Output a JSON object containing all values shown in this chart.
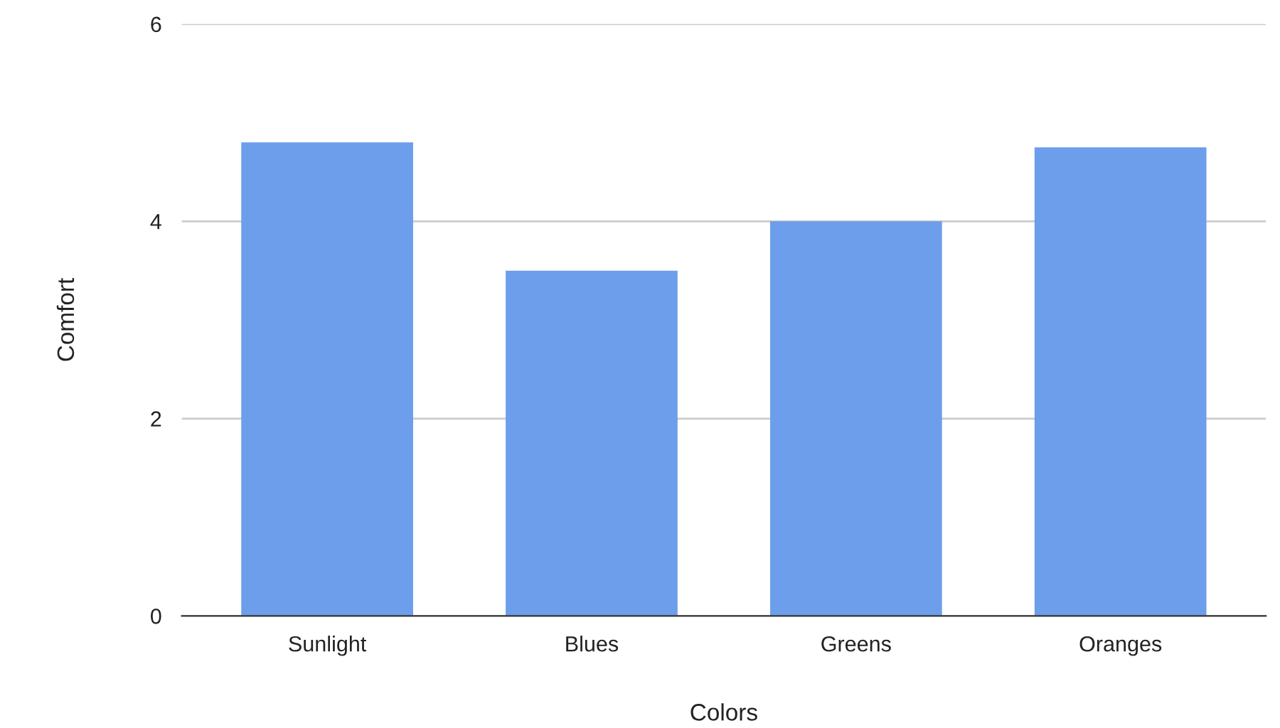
{
  "chart_data": {
    "type": "bar",
    "xlabel": "Colors",
    "ylabel": "Comfort",
    "categories": [
      "Sunlight",
      "Blues",
      "Greens",
      "Oranges"
    ],
    "values": [
      4.8,
      3.5,
      4.0,
      4.75
    ],
    "color": "#6d9eeb",
    "ylim": [
      0,
      6
    ],
    "yticks": [
      0,
      2,
      4,
      6
    ],
    "grid": "y"
  }
}
